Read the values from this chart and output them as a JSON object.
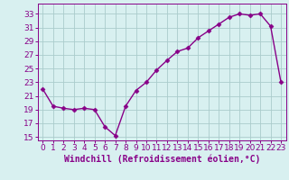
{
  "x": [
    0,
    1,
    2,
    3,
    4,
    5,
    6,
    7,
    8,
    9,
    10,
    11,
    12,
    13,
    14,
    15,
    16,
    17,
    18,
    19,
    20,
    21,
    22,
    23
  ],
  "y": [
    22.0,
    19.5,
    19.2,
    19.0,
    19.2,
    19.0,
    16.5,
    15.2,
    19.5,
    21.8,
    23.0,
    24.8,
    26.2,
    27.5,
    28.0,
    29.5,
    30.5,
    31.5,
    32.5,
    33.0,
    32.8,
    33.0,
    31.2,
    23.0
  ],
  "line_color": "#880088",
  "marker": "D",
  "marker_size": 2.5,
  "bg_color": "#d8f0f0",
  "grid_color": "#aacccc",
  "xlabel": "Windchill (Refroidissement éolien,°C)",
  "xlabel_fontsize": 7,
  "ylabel_ticks": [
    15,
    17,
    19,
    21,
    23,
    25,
    27,
    29,
    31,
    33
  ],
  "xlim": [
    -0.5,
    23.5
  ],
  "ylim": [
    14.5,
    34.5
  ],
  "tick_fontsize": 6.5,
  "label_color": "#880088",
  "axes_color": "#880088",
  "line_width": 1.0
}
